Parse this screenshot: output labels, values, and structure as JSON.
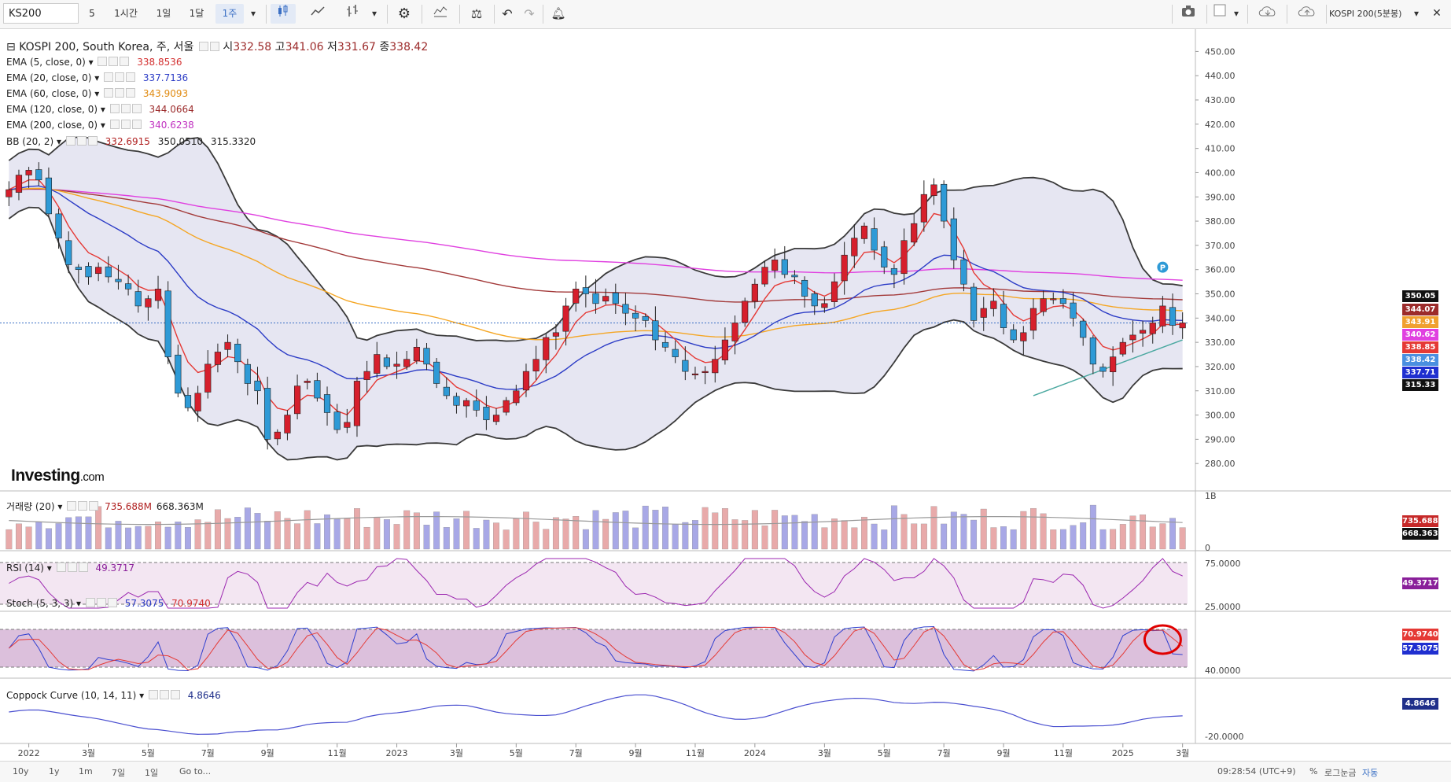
{
  "toolbar": {
    "symbol": "KS200",
    "intervals": [
      "5",
      "1시간",
      "1일",
      "1달",
      "1주"
    ],
    "active_interval": "1주",
    "right_symbol": "KOSPI 200(5분봉)"
  },
  "main_legend": {
    "title": "KOSPI 200, South Korea, 주, 서울",
    "open_label": "시",
    "open": "332.58",
    "high_label": "고",
    "high": "341.06",
    "low_label": "저",
    "low": "331.67",
    "close_label": "종",
    "close": "338.42"
  },
  "indicators": [
    {
      "label": "EMA (5, close, 0)",
      "value": "338.8536",
      "color": "#d32f2f"
    },
    {
      "label": "EMA (20, close, 0)",
      "value": "337.7136",
      "color": "#2c3cc6"
    },
    {
      "label": "EMA (60, close, 0)",
      "value": "343.9093",
      "color": "#f0a030"
    },
    {
      "label": "EMA (120, close, 0)",
      "value": "344.0664",
      "color": "#9c2b2b"
    },
    {
      "label": "EMA (200, close, 0)",
      "value": "340.6238",
      "color": "#d633d6"
    },
    {
      "label": "BB (20, 2)",
      "value": "332.6915",
      "value2": "350.0510",
      "value3": "315.3320",
      "color": "#333333"
    }
  ],
  "volume_legend": {
    "label": "거래량 (20)",
    "value": "735.688M",
    "value2": "668.363M"
  },
  "rsi_legend": {
    "label": "RSI (14)",
    "value": "49.3717"
  },
  "stoch_legend": {
    "label": "Stoch (5, 3, 3)",
    "value": "57.3075",
    "value2": "70.9740"
  },
  "coppock_legend": {
    "label": "Coppock Curve (10, 14, 11)",
    "value": "4.8646"
  },
  "price_tags": [
    {
      "text": "350.05",
      "bg": "#111111"
    },
    {
      "text": "344.07",
      "bg": "#9c2b2b"
    },
    {
      "text": "343.91",
      "bg": "#f0a030"
    },
    {
      "text": "340.62",
      "bg": "#e040e0"
    },
    {
      "text": "338.85",
      "bg": "#e53935"
    },
    {
      "text": "338.42",
      "bg": "#4a8fe0"
    },
    {
      "text": "337.71",
      "bg": "#1f2fd0"
    },
    {
      "text": "315.33",
      "bg": "#111111"
    }
  ],
  "subpane_tags": {
    "vol1": "735.688M",
    "vol2": "668.363M",
    "rsi": "49.3717",
    "stoch_d": "70.9740",
    "stoch_k": "57.3075",
    "coppock": "4.8646"
  },
  "watermark": {
    "brand": "Investing",
    "suffix": ".com"
  },
  "footer": {
    "ranges": [
      "10y",
      "1y",
      "1m",
      "7일",
      "1일",
      "Go to..."
    ],
    "time": "09:28:54 (UTC+9)",
    "pct": "%",
    "log": "로그눈금",
    "auto": "자동"
  },
  "chart_data": {
    "type": "candlestick",
    "title": "KOSPI 200, South Korea, 주, 서울",
    "interval": "주",
    "price_axis": {
      "ticks": [
        "280.00",
        "290.00",
        "300.00",
        "310.00",
        "320.00",
        "330.00",
        "340.00",
        "350.00",
        "360.00",
        "370.00",
        "380.00",
        "390.00",
        "400.00",
        "410.00",
        "420.00",
        "430.00",
        "440.00",
        "450.00"
      ],
      "min": 270,
      "max": 455
    },
    "volume_axis": {
      "ticks": [
        "1B",
        "0"
      ]
    },
    "rsi_axis": {
      "ticks": [
        "75.0000",
        "25.0000"
      ]
    },
    "stoch_axis": {
      "ticks": [
        "40.0000"
      ]
    },
    "coppock_axis": {
      "ticks": [
        "-20.0000"
      ]
    },
    "x_labels": [
      "2022",
      "3월",
      "5월",
      "7월",
      "9월",
      "11월",
      "2023",
      "3월",
      "5월",
      "7월",
      "9월",
      "11월",
      "2024",
      "3월",
      "5월",
      "7월",
      "9월",
      "11월",
      "2025",
      "3월"
    ],
    "close": [
      393,
      399,
      401,
      397,
      383,
      373,
      362,
      360,
      357,
      361,
      357,
      355,
      352,
      345,
      348,
      352,
      324,
      309,
      303,
      309,
      321,
      326,
      330,
      322,
      313,
      310,
      290,
      293,
      300,
      312,
      314,
      307,
      301,
      294,
      297,
      314,
      318,
      325,
      320,
      321,
      323,
      328,
      321,
      313,
      308,
      304,
      306,
      302,
      298,
      300,
      306,
      310,
      318,
      323,
      332,
      334,
      345,
      352,
      350,
      346,
      349,
      346,
      342,
      340,
      339,
      331,
      328,
      324,
      318,
      317,
      318,
      323,
      331,
      338,
      347,
      354,
      361,
      364,
      358,
      357,
      349,
      345,
      346,
      355,
      366,
      373,
      378,
      368,
      361,
      358,
      372,
      379,
      391,
      395,
      380,
      364,
      354,
      339,
      344,
      347,
      336,
      331,
      334,
      344,
      348,
      348,
      346,
      340,
      332,
      321,
      318,
      324,
      330,
      333,
      335,
      338,
      345,
      337,
      338
    ],
    "ema_periods": [
      5,
      20,
      60,
      120,
      200
    ],
    "bollinger": {
      "period": 20,
      "mult": 2
    },
    "trendline": {
      "from_index": 103,
      "from_value": 308,
      "to_index": 118,
      "to_value": 331
    }
  }
}
